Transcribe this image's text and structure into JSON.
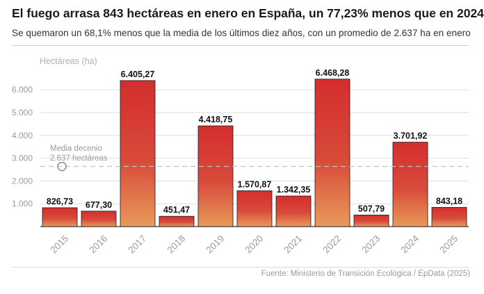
{
  "header": {
    "title": "El fuego arrasa 843 hectáreas en enero en España, un 77,23% menos que en 2024",
    "subtitle": "Se quemaron un 68,1% menos que la media de los últimos diez años, con un promedio de 2.637 ha en enero"
  },
  "footer": {
    "source": "Fuente: Ministerio de Transición Ecológica / EpData (2025)"
  },
  "colors": {
    "bar_top": "#d42e2e",
    "bar_bottom": "#e89a5a",
    "grid": "#dddddd",
    "reference_line": "#c0c0c0"
  },
  "chart_data": {
    "type": "bar",
    "title": "El fuego arrasa 843 hectáreas en enero en España, un 77,23% menos que en 2024",
    "ylabel": "Hectáreas (ha)",
    "xlabel": "",
    "categories": [
      "2015",
      "2016",
      "2017",
      "2018",
      "2019",
      "2020",
      "2021",
      "2022",
      "2023",
      "2024",
      "2025"
    ],
    "values": [
      826.73,
      677.3,
      6405.27,
      451.47,
      4418.75,
      1570.87,
      1342.35,
      6468.28,
      507.79,
      3701.92,
      843.18
    ],
    "value_labels": [
      "826,73",
      "677,30",
      "6.405,27",
      "451,47",
      "4.418,75",
      "1.570,87",
      "1.342,35",
      "6.468,28",
      "507,79",
      "3.701,92",
      "843,18"
    ],
    "ylim": [
      0,
      7000
    ],
    "yticks": [
      1000,
      2000,
      3000,
      4000,
      5000,
      6000
    ],
    "ytick_labels": [
      "1.000",
      "2.000",
      "3.000",
      "4.000",
      "5.000",
      "6.000"
    ],
    "grid": true,
    "reference": {
      "value": 2637,
      "label_line1": "Media decenio",
      "label_line2": "2.637 hectáreas"
    }
  }
}
